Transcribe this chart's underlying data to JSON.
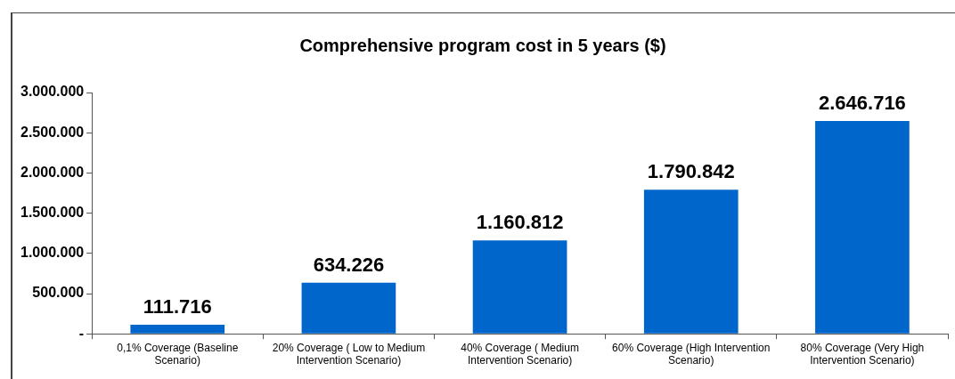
{
  "chart_data": {
    "type": "bar",
    "title": "Comprehensive program cost in 5 years ($)",
    "categories": [
      "0,1% Coverage (Baseline Scenario)",
      "20% Coverage ( Low to Medium Intervention Scenario)",
      "40% Coverage ( Medium Intervention Scenario)",
      "60% Coverage (High Intervention Scenario)",
      "80% Coverage (Very High Intervention Scenario)"
    ],
    "values": [
      111716,
      634226,
      1160812,
      1790842,
      2646716
    ],
    "value_labels": [
      "111.716",
      "634.226",
      "1.160.812",
      "1.790.842",
      "2.646.716"
    ],
    "color": "#0066cc",
    "ylim": [
      0,
      3000000
    ],
    "yticks": [
      {
        "value": 0,
        "label": "-"
      },
      {
        "value": 500000,
        "label": "500.000"
      },
      {
        "value": 1000000,
        "label": "1.000.000"
      },
      {
        "value": 1500000,
        "label": "1.500.000"
      },
      {
        "value": 2000000,
        "label": "2.000.000"
      },
      {
        "value": 2500000,
        "label": "2.500.000"
      },
      {
        "value": 3000000,
        "label": "3.000.000"
      }
    ],
    "grid": false,
    "legend": false
  }
}
